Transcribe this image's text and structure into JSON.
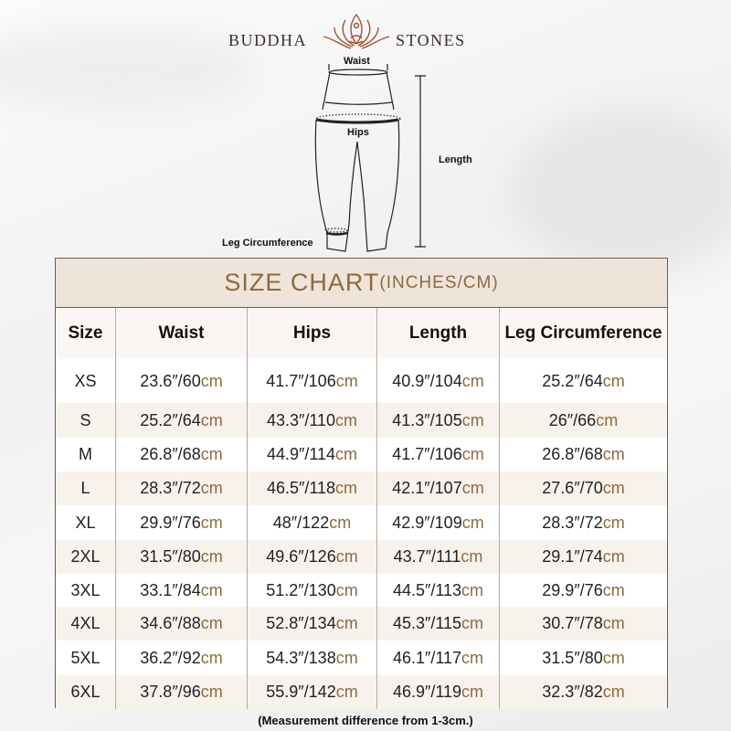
{
  "brand": {
    "left": "BUDDHA",
    "right": "STONES",
    "logo_icon": "lotus-meditation-icon",
    "logo_color": "#a0522d"
  },
  "diagram": {
    "waist": "Waist",
    "hips": "Hips",
    "length": "Length",
    "leg": "Leg Circumference"
  },
  "table": {
    "title": "SIZE CHART",
    "title_units": "(INCHES/CM)",
    "headers": [
      "Size",
      "Waist",
      "Hips",
      "Length",
      "Leg Circumference"
    ],
    "unit": "cm",
    "rows": [
      {
        "size": "XS",
        "waist": "23.6″/60",
        "hips": "41.7″/106",
        "length": "40.9″/104",
        "leg": "25.2″/64"
      },
      {
        "size": "S",
        "waist": "25.2″/64",
        "hips": "43.3″/110",
        "length": "41.3″/105",
        "leg": "26″/66"
      },
      {
        "size": "M",
        "waist": "26.8″/68",
        "hips": "44.9″/114",
        "length": "41.7″/106",
        "leg": "26.8″/68"
      },
      {
        "size": "L",
        "waist": "28.3″/72",
        "hips": "46.5″/118",
        "length": "42.1″/107",
        "leg": "27.6″/70"
      },
      {
        "size": "XL",
        "waist": "29.9″/76",
        "hips": "48″/122",
        "length": "42.9″/109",
        "leg": "28.3″/72"
      },
      {
        "size": "2XL",
        "waist": "31.5″/80",
        "hips": "49.6″/126",
        "length": "43.7″/111",
        "leg": "29.1″/74"
      },
      {
        "size": "3XL",
        "waist": "33.1″/84",
        "hips": "51.2″/130",
        "length": "44.5″/113",
        "leg": "29.9″/76"
      },
      {
        "size": "4XL",
        "waist": "34.6″/88",
        "hips": "52.8″/134",
        "length": "45.3″/115",
        "leg": "30.7″/78"
      },
      {
        "size": "5XL",
        "waist": "36.2″/92",
        "hips": "54.3″/138",
        "length": "46.1″/117",
        "leg": "31.5″/80"
      },
      {
        "size": "6XL",
        "waist": "37.8″/96",
        "hips": "55.9″/142",
        "length": "46.9″/119",
        "leg": "32.3″/82"
      }
    ]
  },
  "note": "(Measurement difference from 1-3cm.)",
  "colors": {
    "accent": "#8c6a3f",
    "title_bg": "#efe4da",
    "alt_row": "#f8f2ec"
  }
}
